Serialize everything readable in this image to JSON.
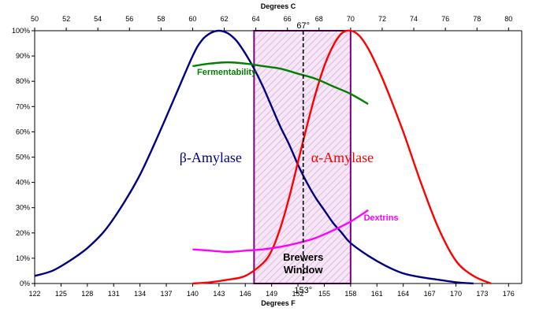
{
  "chart_data": {
    "type": "line",
    "xlabel": "Degrees F",
    "x2label": "Degrees C",
    "xlim": [
      122,
      177.5
    ],
    "ylim": [
      0,
      100
    ],
    "x_ticks": [
      122,
      125,
      128,
      131,
      134,
      137,
      140,
      143,
      146,
      149,
      152,
      155,
      158,
      161,
      164,
      167,
      170,
      173,
      176
    ],
    "x2_ticks": [
      50,
      52,
      54,
      56,
      58,
      60,
      62,
      64,
      66,
      68,
      70,
      72,
      74,
      76,
      78,
      80
    ],
    "y_ticks": [
      0,
      10,
      20,
      30,
      40,
      50,
      60,
      70,
      80,
      90,
      100
    ],
    "y_tick_labels": [
      "0%",
      "10%",
      "20%",
      "30%",
      "40%",
      "50%",
      "60%",
      "70%",
      "80%",
      "90%",
      "100%"
    ],
    "grid": false,
    "series": [
      {
        "name": "β-Amylase",
        "color": "#000080",
        "x": [
          122,
          124,
          126,
          128,
          130,
          132,
          134,
          136,
          138,
          140,
          141,
          142,
          143,
          144,
          145,
          146,
          147,
          148,
          149,
          150,
          151,
          152,
          153,
          154,
          155,
          156,
          157,
          158,
          160,
          162,
          164,
          166,
          168,
          170,
          172
        ],
        "y": [
          3,
          5,
          9,
          14,
          21,
          31,
          43,
          58,
          74,
          90,
          96,
          99,
          100,
          99,
          96,
          91,
          85,
          78,
          70,
          62,
          55,
          47,
          40,
          34,
          29,
          24,
          20,
          16,
          11,
          7,
          4,
          2.5,
          1.5,
          0.5,
          0
        ]
      },
      {
        "name": "α-Amylase",
        "color": "#ff0000",
        "x": [
          140,
          142,
          144,
          146,
          148,
          149,
          150,
          151,
          152,
          153,
          154,
          155,
          156,
          157,
          158,
          159,
          160,
          161,
          162,
          164,
          166,
          168,
          170,
          172,
          174
        ],
        "y": [
          0,
          0.5,
          1.5,
          3,
          8,
          13,
          22,
          34,
          48,
          62,
          75,
          86,
          94,
          99,
          100,
          98,
          93,
          86,
          78,
          60,
          40,
          22,
          9,
          3,
          0
        ]
      },
      {
        "name": "Fermentability",
        "color": "#008000",
        "x": [
          140,
          142,
          144,
          146,
          148,
          150,
          152,
          154,
          156,
          158,
          160
        ],
        "y": [
          86,
          87,
          87.5,
          87,
          86,
          85,
          83,
          81,
          78,
          75,
          71
        ]
      },
      {
        "name": "Dextrins",
        "color": "#ff00ff",
        "x": [
          140,
          142,
          144,
          146,
          148,
          150,
          152,
          154,
          156,
          158,
          160
        ],
        "y": [
          13.5,
          13,
          12.5,
          13,
          13.5,
          14.5,
          16,
          18,
          21,
          24.5,
          29
        ]
      }
    ],
    "window": {
      "label_line1": "Brewers",
      "label_line2": "Window",
      "x_start": 147,
      "x_end": 158,
      "fill_color": "#f0d0f0",
      "border_color": "#800080"
    },
    "marker": {
      "x": 152.6,
      "top_label": "67°",
      "bottom_label": "153°"
    },
    "colors": {
      "beta": "#000080",
      "alpha": "#ff0000",
      "fermentability": "#008000",
      "dextrins": "#ff00ff"
    }
  }
}
